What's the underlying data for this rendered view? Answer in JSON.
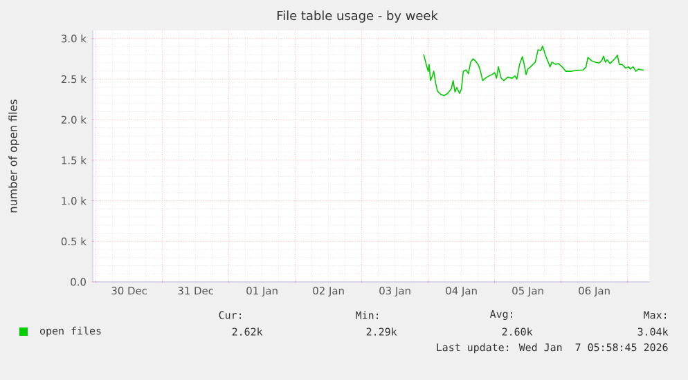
{
  "chart_data": {
    "type": "line",
    "title": "File table usage - by week",
    "ylabel": "number of open files",
    "xlim": [
      "2025-12-29T22:51",
      "2026-01-07T07:51"
    ],
    "ylim": [
      0,
      3100
    ],
    "xticks": [
      {
        "value": "2025-12-30T00:00",
        "label": null
      },
      {
        "value": "2025-12-31T00:00",
        "label": null
      },
      {
        "value": "2026-01-01T00:00",
        "label": null
      },
      {
        "value": "2026-01-02T00:00",
        "label": null
      },
      {
        "value": "2026-01-03T00:00",
        "label": null
      },
      {
        "value": "2026-01-04T00:00",
        "label": null
      },
      {
        "value": "2026-01-05T00:00",
        "label": null
      },
      {
        "value": "2026-01-06T00:00",
        "label": null
      },
      {
        "value": "2026-01-07T00:00",
        "label": null
      },
      {
        "value": "2025-12-30T12:00",
        "label": "30 Dec"
      },
      {
        "value": "2025-12-31T12:00",
        "label": "31 Dec"
      },
      {
        "value": "2026-01-01T12:00",
        "label": "01 Jan"
      },
      {
        "value": "2026-01-02T12:00",
        "label": "02 Jan"
      },
      {
        "value": "2026-01-03T12:00",
        "label": "03 Jan"
      },
      {
        "value": "2026-01-04T12:00",
        "label": "04 Jan"
      },
      {
        "value": "2026-01-05T12:00",
        "label": "05 Jan"
      },
      {
        "value": "2026-01-06T12:00",
        "label": "06 Jan"
      }
    ],
    "yticks": [
      {
        "value": 0,
        "label": "0.0"
      },
      {
        "value": 500,
        "label": "0.5 k"
      },
      {
        "value": 1000,
        "label": "1.0 k"
      },
      {
        "value": 1500,
        "label": "1.5 k"
      },
      {
        "value": 2000,
        "label": "2.0 k"
      },
      {
        "value": 2500,
        "label": "2.5 k"
      },
      {
        "value": 3000,
        "label": "3.0 k"
      }
    ],
    "grid": true,
    "legend": "bottom left",
    "annotations": [
      "Cur:",
      "Min:",
      "Avg:",
      "Max:",
      "2.62k",
      "2.29k",
      "2.60k",
      "3.04k",
      "Last update: Wed Jan  7 05:58:45 2026"
    ],
    "x": [
      "2026-01-03T22:21",
      "2026-01-03T23:31",
      "2026-01-04T00:01",
      "2026-01-04T00:21",
      "2026-01-04T00:51",
      "2026-01-04T01:31",
      "2026-01-04T02:01",
      "2026-01-04T02:41",
      "2026-01-04T03:21",
      "2026-01-04T04:31",
      "2026-01-04T05:41",
      "2026-01-04T07:01",
      "2026-01-04T08:21",
      "2026-01-04T09:01",
      "2026-01-04T09:41",
      "2026-01-04T10:21",
      "2026-01-04T11:21",
      "2026-01-04T12:01",
      "2026-01-04T12:41",
      "2026-01-04T13:41",
      "2026-01-04T14:31",
      "2026-01-04T15:21",
      "2026-01-04T16:11",
      "2026-01-04T17:01",
      "2026-01-04T18:01",
      "2026-01-04T18:41",
      "2026-01-04T19:41",
      "2026-01-04T20:41",
      "2026-01-04T22:01",
      "2026-01-04T23:01",
      "2026-01-05T00:01",
      "2026-01-05T00:41",
      "2026-01-05T01:21",
      "2026-01-05T02:21",
      "2026-01-05T03:21",
      "2026-01-05T04:41",
      "2026-01-05T06:21",
      "2026-01-05T07:21",
      "2026-01-05T08:01",
      "2026-01-05T09:01",
      "2026-01-05T10:01",
      "2026-01-05T10:41",
      "2026-01-05T11:21",
      "2026-01-05T12:01",
      "2026-01-05T13:01",
      "2026-01-05T14:41",
      "2026-01-05T15:41",
      "2026-01-05T16:41",
      "2026-01-05T17:21",
      "2026-01-05T18:21",
      "2026-01-05T19:21",
      "2026-01-05T20:01",
      "2026-01-05T20:41",
      "2026-01-05T22:01",
      "2026-01-05T23:01",
      "2026-01-06T00:21",
      "2026-01-06T01:41",
      "2026-01-06T03:21",
      "2026-01-06T05:41",
      "2026-01-06T08:01",
      "2026-01-06T09:01",
      "2026-01-06T09:41",
      "2026-01-06T11:01",
      "2026-01-06T12:21",
      "2026-01-06T13:41",
      "2026-01-06T14:41",
      "2026-01-06T15:21",
      "2026-01-06T16:01",
      "2026-01-06T16:41",
      "2026-01-06T17:41",
      "2026-01-06T19:21",
      "2026-01-06T20:21",
      "2026-01-06T21:01",
      "2026-01-06T22:01",
      "2026-01-06T23:21",
      "2026-01-07T00:21",
      "2026-01-07T01:01",
      "2026-01-07T02:01",
      "2026-01-07T03:01",
      "2026-01-07T04:01",
      "2026-01-07T05:01",
      "2026-01-07T05:55"
    ],
    "series": [
      {
        "name": "open files",
        "color": "#00cc00",
        "values": [
          2805,
          2652,
          2596,
          2681,
          2482,
          2539,
          2596,
          2454,
          2352,
          2312,
          2295,
          2323,
          2380,
          2482,
          2340,
          2397,
          2323,
          2380,
          2596,
          2613,
          2567,
          2709,
          2749,
          2726,
          2681,
          2624,
          2482,
          2511,
          2539,
          2556,
          2579,
          2511,
          2652,
          2511,
          2482,
          2522,
          2511,
          2539,
          2499,
          2681,
          2777,
          2681,
          2556,
          2624,
          2652,
          2709,
          2862,
          2851,
          2907,
          2794,
          2709,
          2652,
          2709,
          2681,
          2692,
          2652,
          2596,
          2596,
          2607,
          2613,
          2652,
          2766,
          2726,
          2709,
          2698,
          2726,
          2783,
          2709,
          2737,
          2692,
          2749,
          2794,
          2681,
          2681,
          2635,
          2652,
          2624,
          2652,
          2596,
          2624,
          2613,
          2613
        ]
      }
    ]
  }
}
